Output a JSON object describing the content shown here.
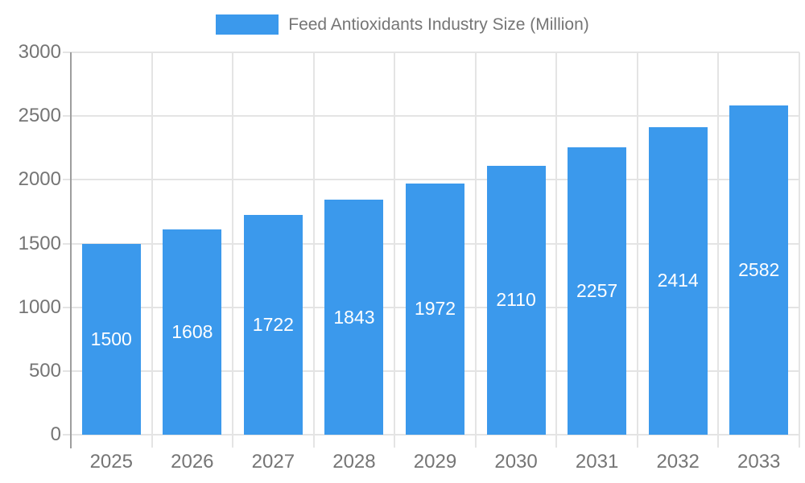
{
  "legend": {
    "label": "Feed Antioxidants Industry Size (Million)"
  },
  "chart_data": {
    "type": "bar",
    "title": "Feed Antioxidants Industry Size (Million)",
    "categories": [
      "2025",
      "2026",
      "2027",
      "2028",
      "2029",
      "2030",
      "2031",
      "2032",
      "2033"
    ],
    "values": [
      1500,
      1608,
      1722,
      1843,
      1972,
      2110,
      2257,
      2414,
      2582
    ],
    "series_name": "Feed Antioxidants Industry Size (Million)",
    "xlabel": "",
    "ylabel": "",
    "ylim": [
      0,
      3000
    ],
    "yticks": [
      0,
      500,
      1000,
      1500,
      2000,
      2500,
      3000
    ],
    "grid": true,
    "legend_position": "top-center",
    "bar_labels_inside": true,
    "colors": {
      "bar": "#3B99EC",
      "bar_label_text": "#FFFFFF",
      "axis_text": "#757575",
      "gridline": "#E4E4E4",
      "axis_line": "#9E9E9E",
      "background": "#FFFFFF"
    }
  }
}
